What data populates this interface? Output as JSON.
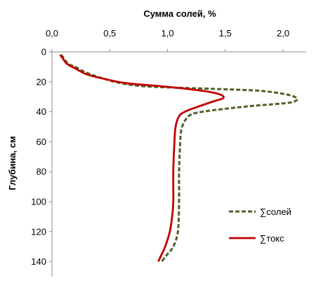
{
  "chart_data": {
    "type": "line",
    "title": "",
    "xlabel": "Сумма солей, %",
    "ylabel": "Глубина, см",
    "x_position": "top",
    "y_inverted": true,
    "xlim": [
      0,
      2.2
    ],
    "ylim": [
      0,
      150
    ],
    "x_ticks": [
      0,
      0.5,
      1,
      1.5,
      2
    ],
    "x_tick_labels": [
      "0,0",
      "0,5",
      "1,0",
      "1,5",
      "2,0"
    ],
    "y_ticks": [
      0,
      20,
      40,
      60,
      80,
      100,
      120,
      140
    ],
    "y_tick_labels": [
      "0",
      "20",
      "40",
      "60",
      "80",
      "100",
      "120",
      "140"
    ],
    "grid": false,
    "legend_position": "bottom-right",
    "series": [
      {
        "name": "∑солей",
        "color": "#4f6228",
        "dash": "dashed",
        "points": [
          [
            0.08,
            2
          ],
          [
            0.1,
            4
          ],
          [
            0.14,
            8
          ],
          [
            0.2,
            10
          ],
          [
            0.3,
            14
          ],
          [
            0.45,
            18
          ],
          [
            0.6,
            21
          ],
          [
            0.8,
            23
          ],
          [
            1.1,
            24
          ],
          [
            1.5,
            25
          ],
          [
            1.8,
            26
          ],
          [
            2.0,
            28
          ],
          [
            2.1,
            30
          ],
          [
            2.12,
            32
          ],
          [
            2.05,
            34
          ],
          [
            1.75,
            36
          ],
          [
            1.5,
            38
          ],
          [
            1.3,
            40
          ],
          [
            1.2,
            42
          ],
          [
            1.15,
            46
          ],
          [
            1.12,
            52
          ],
          [
            1.11,
            60
          ],
          [
            1.1,
            80
          ],
          [
            1.1,
            100
          ],
          [
            1.09,
            120
          ],
          [
            1.05,
            130
          ],
          [
            1.0,
            135
          ],
          [
            0.95,
            140
          ]
        ]
      },
      {
        "name": "∑токс",
        "color": "#c00000",
        "dash": "solid",
        "points": [
          [
            0.07,
            2
          ],
          [
            0.09,
            4
          ],
          [
            0.13,
            8
          ],
          [
            0.2,
            11
          ],
          [
            0.3,
            15
          ],
          [
            0.45,
            18
          ],
          [
            0.65,
            21
          ],
          [
            0.95,
            23
          ],
          [
            1.2,
            25
          ],
          [
            1.38,
            27
          ],
          [
            1.47,
            29
          ],
          [
            1.48,
            31
          ],
          [
            1.4,
            33
          ],
          [
            1.25,
            37
          ],
          [
            1.15,
            40
          ],
          [
            1.1,
            43
          ],
          [
            1.07,
            50
          ],
          [
            1.06,
            60
          ],
          [
            1.05,
            80
          ],
          [
            1.05,
            100
          ],
          [
            1.04,
            110
          ],
          [
            1.02,
            120
          ],
          [
            0.98,
            130
          ],
          [
            0.95,
            135
          ],
          [
            0.92,
            140
          ]
        ]
      }
    ]
  }
}
